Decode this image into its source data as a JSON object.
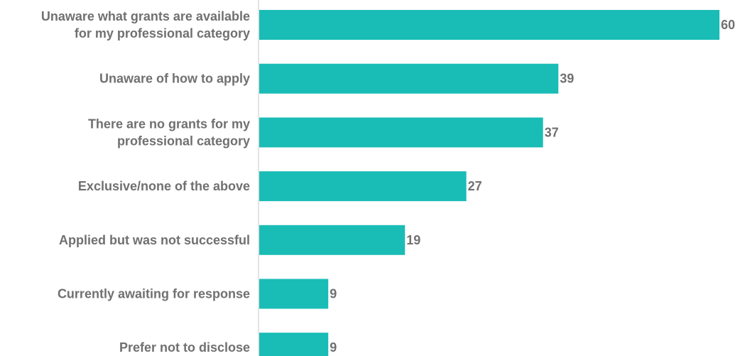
{
  "colors": {
    "bar": "#1abcb6",
    "axis": "#dcdcdc",
    "text": "#707070"
  },
  "chart_data": {
    "type": "bar",
    "orientation": "horizontal",
    "categories": [
      [
        "Unaware what grants are available",
        "for my professional category"
      ],
      [
        "Unaware of how to apply"
      ],
      [
        "There are no grants for my",
        "professional category"
      ],
      [
        "Exclusive/none of the above"
      ],
      [
        "Applied but was not successful"
      ],
      [
        "Currently awaiting for response"
      ],
      [
        "Prefer not to disclose"
      ]
    ],
    "values": [
      60,
      39,
      37,
      27,
      19,
      9,
      9
    ],
    "title": "",
    "xlabel": "",
    "ylabel": "",
    "xlim": [
      0,
      60
    ],
    "grid": false,
    "legend": "none",
    "data_labels": true
  }
}
